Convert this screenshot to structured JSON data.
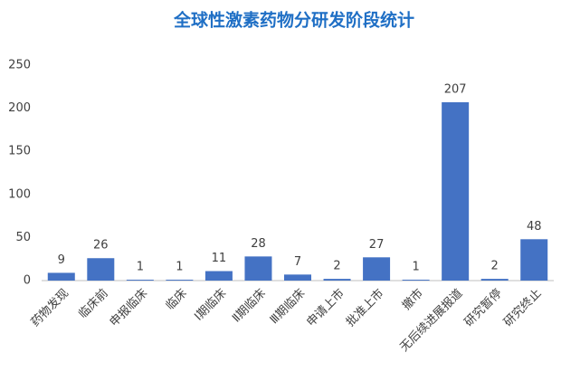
{
  "chart_data": {
    "type": "bar",
    "title": "全球性激素药物分研发阶段统计",
    "categories": [
      "药物发现",
      "临床前",
      "申报临床",
      "临床",
      "Ⅰ期临床",
      "Ⅱ期临床",
      "Ⅲ期临床",
      "申请上市",
      "批准上市",
      "撤市",
      "无后续进展报道",
      "研究暂停",
      "研究终止"
    ],
    "values": [
      9,
      26,
      1,
      1,
      11,
      28,
      7,
      2,
      27,
      1,
      207,
      2,
      48
    ],
    "color": "#4472c4",
    "ylim": [
      0,
      250
    ],
    "yticks": [
      0,
      50,
      100,
      150,
      200,
      250
    ],
    "grid": false
  }
}
